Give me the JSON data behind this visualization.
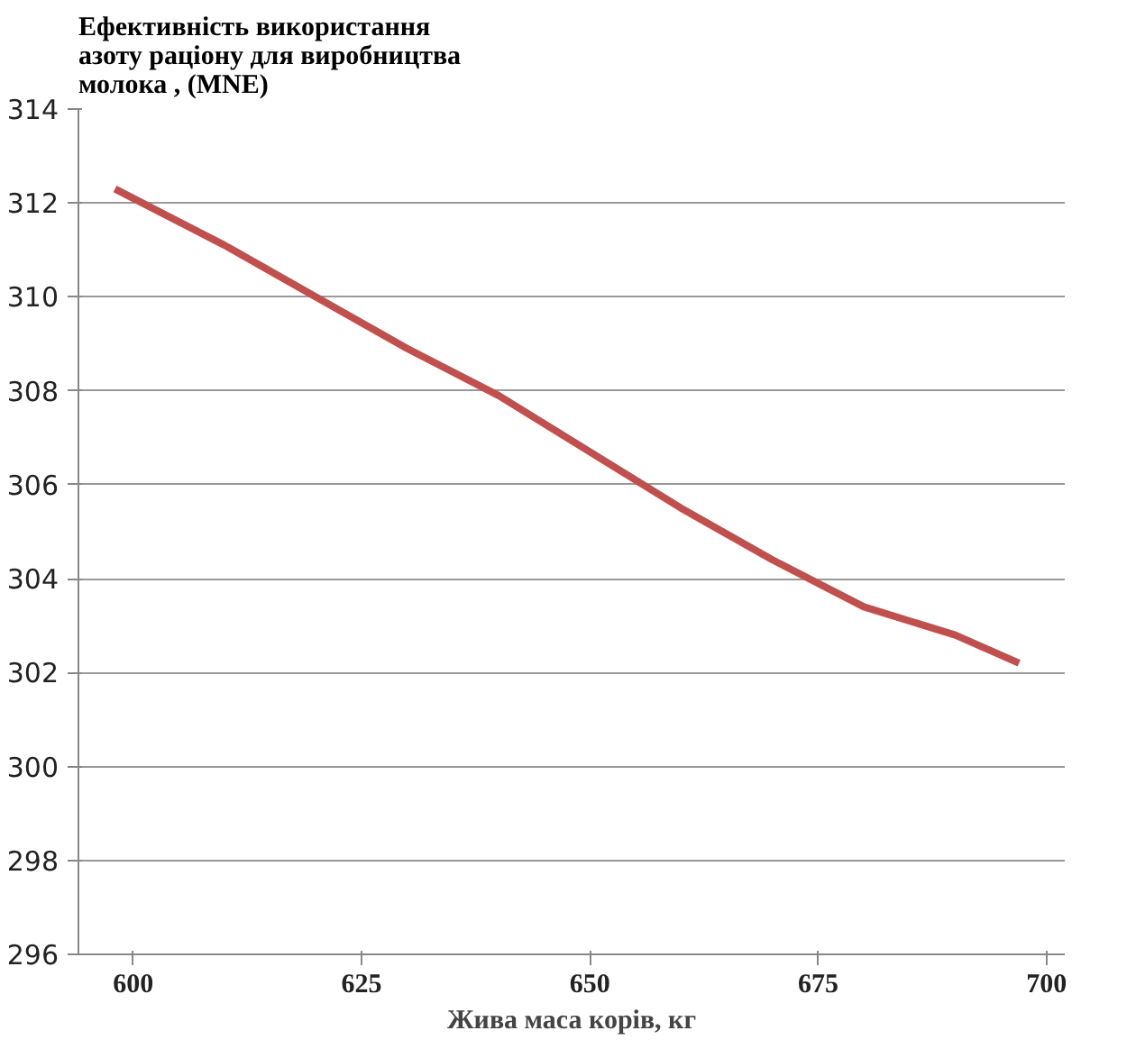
{
  "chart_data": {
    "type": "line",
    "title": "Ефективність використання\nазоту раціону для виробництва\nмолока , (MNE)",
    "xlabel": "Жива маса корів, кг",
    "x": [
      598,
      610,
      620,
      630,
      640,
      650,
      660,
      670,
      680,
      690,
      697
    ],
    "series": [
      {
        "color": "#c0504d",
        "values": [
          312.3,
          311.1,
          310.0,
          308.9,
          307.9,
          306.7,
          305.5,
          304.4,
          303.4,
          302.8,
          302.2
        ]
      }
    ],
    "xlim": [
      594,
      702
    ],
    "xticks": [
      600,
      625,
      650,
      675,
      700
    ],
    "ylim": [
      296,
      314
    ],
    "yticks": [
      296,
      298,
      300,
      302,
      304,
      306,
      308,
      310,
      312,
      314
    ],
    "grid": "y",
    "marker": "none",
    "line_style": "solid"
  }
}
